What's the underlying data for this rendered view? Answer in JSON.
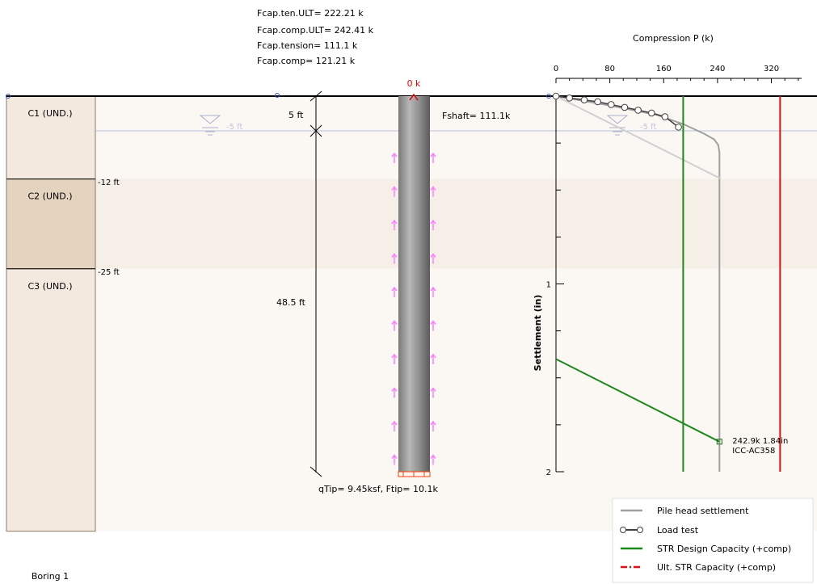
{
  "capacity_summary": {
    "ten_ult": "Fcap.ten.ULT= 222.21 k",
    "comp_ult": "Fcap.comp.ULT= 242.41 k",
    "tension": "Fcap.tension= 111.1 k",
    "comp": "Fcap.comp= 121.21 k"
  },
  "soil_layers": [
    {
      "name": "C1 (UND.)",
      "top_ft": 0,
      "bottom_ft": 12,
      "color": "#f3e9df"
    },
    {
      "name": "C2 (UND.)",
      "top_ft": 12,
      "bottom_ft": 25,
      "color": "#e4d4bf"
    },
    {
      "name": "C3 (UND.)",
      "top_ft": 25,
      "bottom_ft": 63,
      "color": "#f3e9df"
    }
  ],
  "layer_depth_labels": [
    "-12 ft",
    "-25 ft"
  ],
  "water_table": {
    "depth_ft": 5,
    "label": "-5 ft"
  },
  "boring_label": "Boring 1",
  "pile": {
    "top_load_label": "0 k",
    "shaft_force_label": "Fshaft= 111.1k",
    "tip_label": "qTip= 9.45ksf, Ftip= 10.1k",
    "length_label": "48.5 ft",
    "embed_label": "5 ft",
    "length_ft": 48.5,
    "top_offset_ft": 5
  },
  "colors": {
    "pile_head": "#a0a0a0",
    "load_test": "#404040",
    "str_design": "#1a8a1a",
    "ult_str": "#e01010",
    "skin_arrow": "#ff80ff",
    "tip_load": "#ff4000",
    "light_curve": "#d0d0d0"
  },
  "chart_data": {
    "type": "line",
    "xlabel": "Compression P (k)",
    "ylabel": "Settlement (in)",
    "x_ticks": [
      0,
      80,
      160,
      240,
      320
    ],
    "y_ticks": [
      1,
      2
    ],
    "y_tick_labels": [
      "1",
      "2"
    ],
    "xlim": [
      0,
      365
    ],
    "ylim": [
      0,
      2
    ],
    "series": [
      {
        "name": "Pile head settlement",
        "style": "line",
        "x": [
          0,
          80,
          150,
          190,
          220,
          235,
          241,
          242,
          242.9,
          242.9
        ],
        "y": [
          0,
          0.05,
          0.1,
          0.15,
          0.2,
          0.23,
          0.26,
          0.28,
          0.3,
          2.0
        ]
      },
      {
        "style": "line-light",
        "x": [
          0,
          245
        ],
        "y": [
          0,
          0.44
        ]
      },
      {
        "name": "Load test",
        "style": "markers",
        "x": [
          0,
          20,
          42,
          62,
          82,
          102,
          122,
          142,
          162,
          182
        ],
        "y": [
          0,
          0.01,
          0.02,
          0.03,
          0.045,
          0.06,
          0.075,
          0.09,
          0.11,
          0.165
        ]
      },
      {
        "name": "STR Design Capacity (+comp)",
        "style": "vline",
        "x": 189
      },
      {
        "name": "Ult. STR Capacity (+comp)",
        "style": "vline",
        "x": 333
      },
      {
        "style": "line-green",
        "x": [
          0,
          242.9
        ],
        "y": [
          1.4,
          1.84
        ]
      }
    ],
    "point_label": {
      "text1": "242.9k 1.84in",
      "text2": "ICC-AC358",
      "x": 242.9,
      "y": 1.84
    }
  },
  "legend": [
    "Pile head settlement",
    "Load test",
    "STR Design Capacity (+comp)",
    "Ult. STR Capacity (+comp)"
  ]
}
